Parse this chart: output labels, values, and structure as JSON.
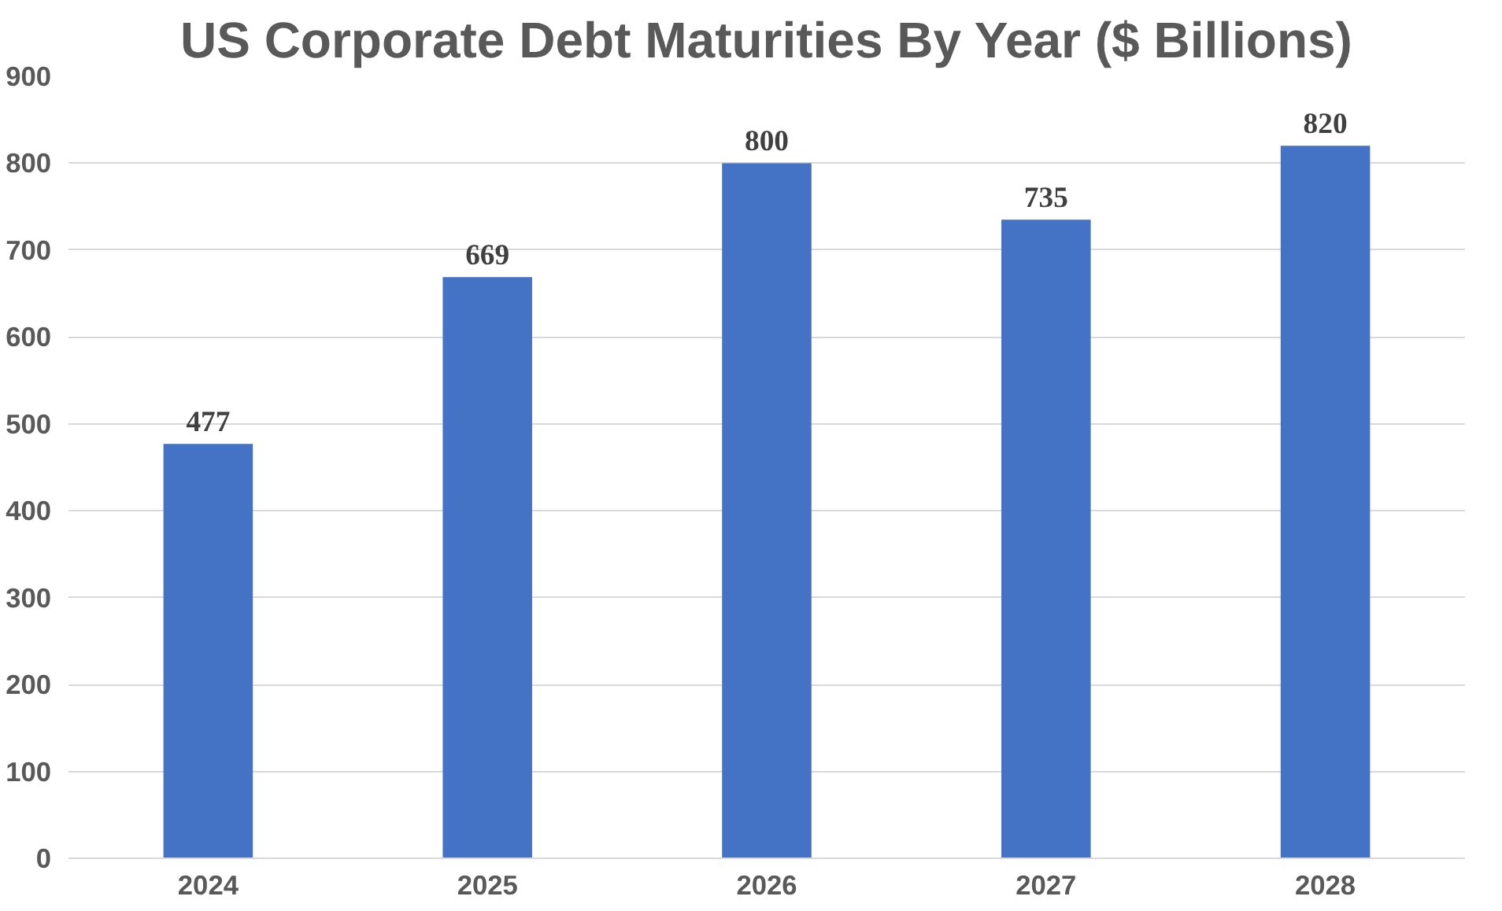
{
  "chart_data": {
    "type": "bar",
    "title": "US Corporate Debt Maturities By Year ($ Billions)",
    "categories": [
      "2024",
      "2025",
      "2026",
      "2027",
      "2028"
    ],
    "values": [
      477,
      669,
      800,
      735,
      820
    ],
    "color": "#4472c4",
    "ylim": [
      0,
      900
    ],
    "yticks": [
      0,
      100,
      200,
      300,
      400,
      500,
      600,
      700,
      800,
      900
    ],
    "grid": "y",
    "data_labels": true
  }
}
